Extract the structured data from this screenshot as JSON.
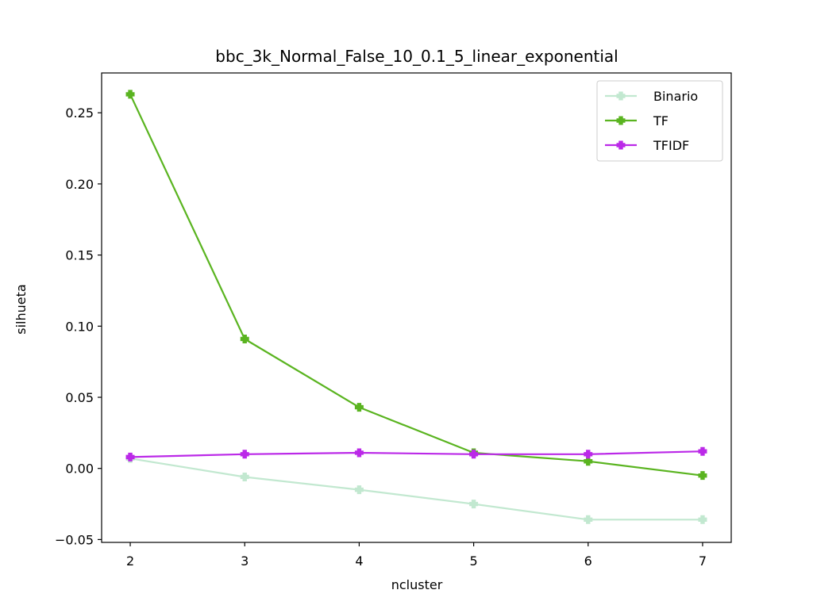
{
  "chart_data": {
    "type": "line",
    "title": "bbc_3k_Normal_False_10_0.1_5_linear_exponential",
    "xlabel": "ncluster",
    "ylabel": "silhueta",
    "x": [
      2,
      3,
      4,
      5,
      6,
      7
    ],
    "xlim": [
      1.75,
      7.25
    ],
    "ylim": [
      -0.052,
      0.278
    ],
    "xticks": [
      "2",
      "3",
      "4",
      "5",
      "6",
      "7"
    ],
    "yticks": [
      -0.05,
      0.0,
      0.05,
      0.1,
      0.15,
      0.2,
      0.25
    ],
    "ytick_labels": [
      "−0.05",
      "0.00",
      "0.05",
      "0.10",
      "0.15",
      "0.20",
      "0.25"
    ],
    "grid": false,
    "legend_position": "top-right",
    "marker": "plus-filled",
    "series": [
      {
        "name": "Binario",
        "color": "#c2e8d0",
        "values": [
          0.007,
          -0.006,
          -0.015,
          -0.025,
          -0.036,
          -0.036
        ]
      },
      {
        "name": "TF",
        "color": "#5ab420",
        "values": [
          0.263,
          0.091,
          0.043,
          0.011,
          0.005,
          -0.005
        ]
      },
      {
        "name": "TFIDF",
        "color": "#bb29e8",
        "values": [
          0.008,
          0.01,
          0.011,
          0.01,
          0.01,
          0.012
        ]
      }
    ]
  }
}
